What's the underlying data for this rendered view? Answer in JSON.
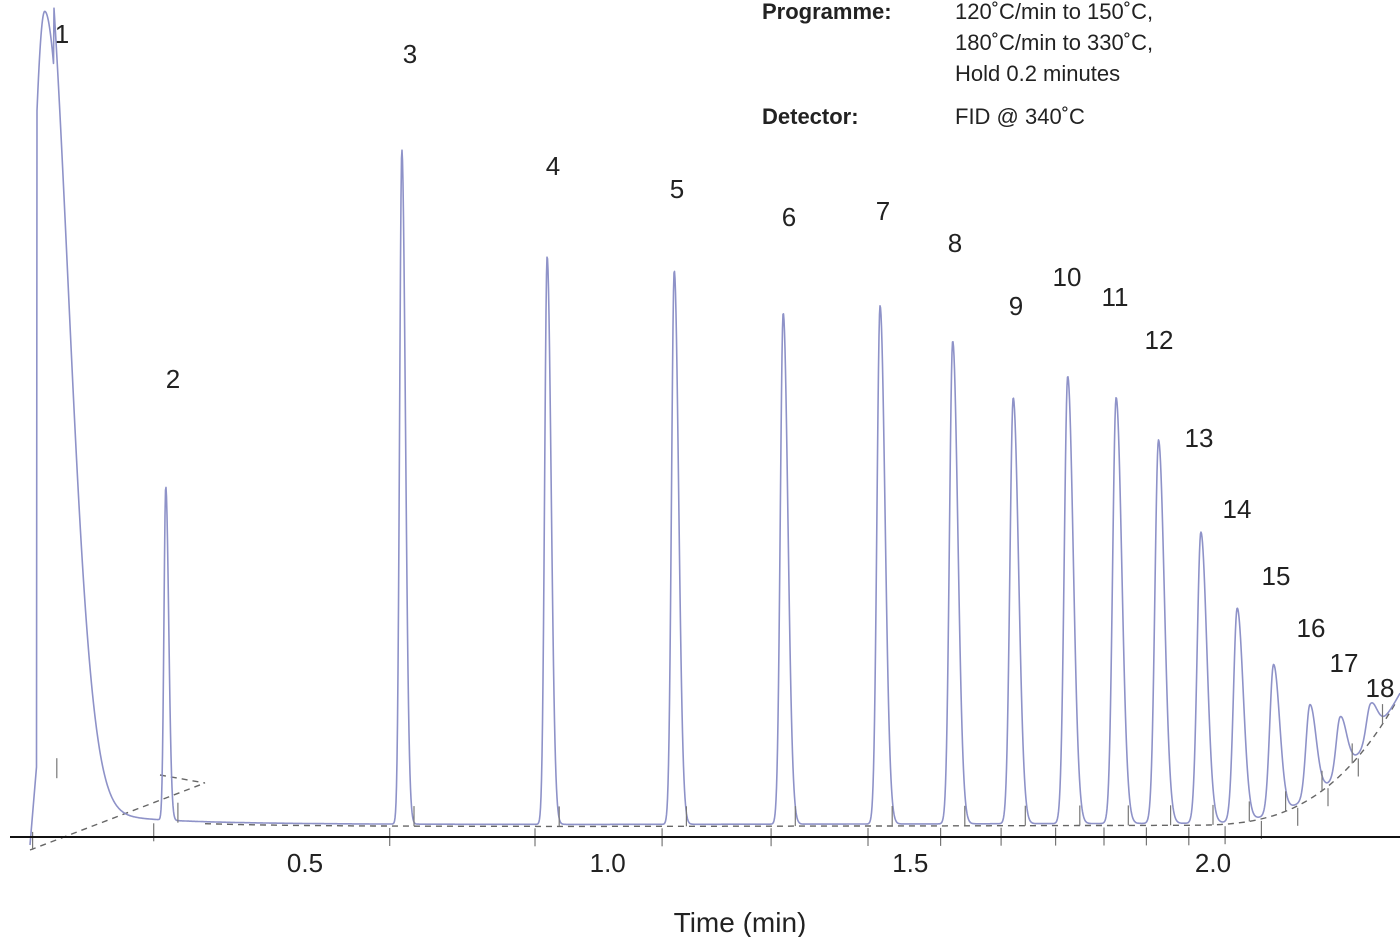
{
  "conditions": {
    "programme_label": "Programme:",
    "programme_lines": [
      "120˚C/min to 150˚C,",
      "180˚C/min to 330˚C,",
      "Hold 0.2 minutes"
    ],
    "detector_label": "Detector:",
    "detector_value": "FID @ 340˚C"
  },
  "chart_data": {
    "type": "line",
    "title": "",
    "xlabel": "Time (min)",
    "ylabel": "",
    "xlim": [
      0.0,
      2.3
    ],
    "ylim": [
      0,
      100
    ],
    "x_ticks": [
      0.5,
      1.0,
      1.5,
      2.0
    ],
    "x_tick_labels": [
      "0.5",
      "1.0",
      "1.5",
      "2.0"
    ],
    "grid": false,
    "colors": {
      "trace": "#8e92c8",
      "baseline": "#666666",
      "axis": "#111111"
    },
    "peaks": [
      {
        "label": "1",
        "rt": 0.07,
        "height": 115
      },
      {
        "label": "2",
        "rt": 0.27,
        "height": 47
      },
      {
        "label": "3",
        "rt": 0.66,
        "height": 95
      },
      {
        "label": "4",
        "rt": 0.9,
        "height": 80
      },
      {
        "label": "5",
        "rt": 1.11,
        "height": 78
      },
      {
        "label": "6",
        "rt": 1.29,
        "height": 72
      },
      {
        "label": "7",
        "rt": 1.45,
        "height": 73
      },
      {
        "label": "8",
        "rt": 1.57,
        "height": 68
      },
      {
        "label": "9",
        "rt": 1.67,
        "height": 60
      },
      {
        "label": "10",
        "rt": 1.76,
        "height": 63
      },
      {
        "label": "11",
        "rt": 1.84,
        "height": 60
      },
      {
        "label": "12",
        "rt": 1.91,
        "height": 54
      },
      {
        "label": "13",
        "rt": 1.98,
        "height": 41
      },
      {
        "label": "14",
        "rt": 2.04,
        "height": 30
      },
      {
        "label": "15",
        "rt": 2.1,
        "height": 21
      },
      {
        "label": "16",
        "rt": 2.16,
        "height": 13
      },
      {
        "label": "17",
        "rt": 2.21,
        "height": 8
      },
      {
        "label": "18",
        "rt": 2.26,
        "height": 5
      }
    ]
  }
}
